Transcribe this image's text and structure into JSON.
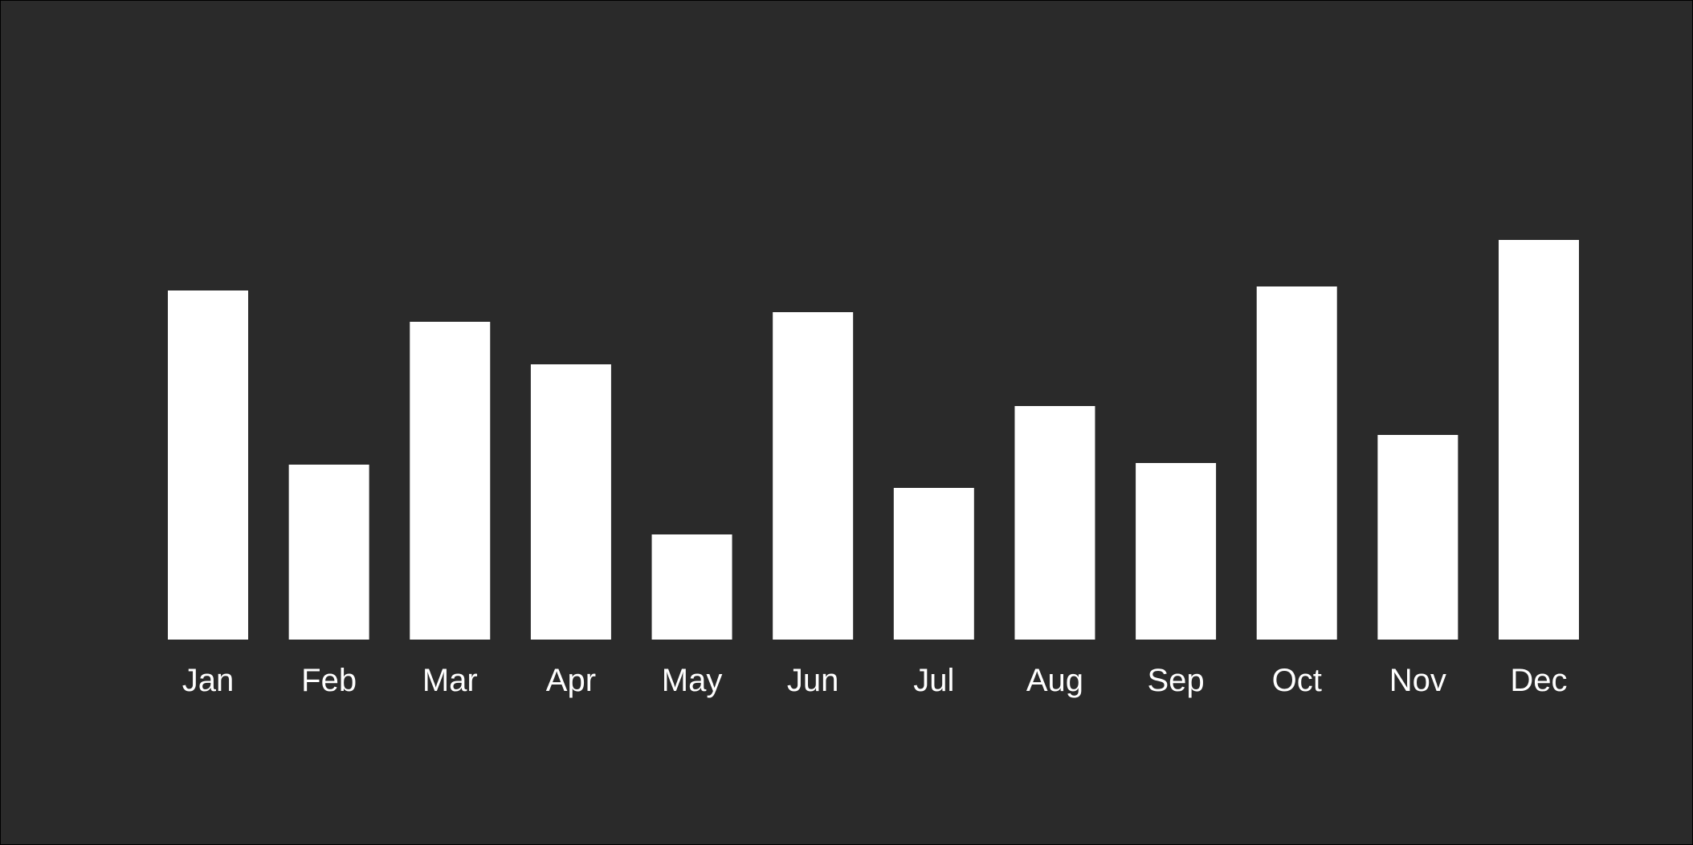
{
  "colors": {
    "background": "#2a2a2a",
    "bar": "#ffffff",
    "label": "#ffffff"
  },
  "chart_data": {
    "type": "bar",
    "title": "",
    "xlabel": "",
    "ylabel": "",
    "categories": [
      "Jan",
      "Feb",
      "Mar",
      "Apr",
      "May",
      "Jun",
      "Jul",
      "Aug",
      "Sep",
      "Oct",
      "Nov",
      "Dec"
    ],
    "values": [
      435,
      218,
      396,
      343,
      131,
      408,
      189,
      291,
      220,
      440,
      255,
      498
    ],
    "ylim": [
      0,
      500
    ],
    "grid": false,
    "legend": "none"
  }
}
